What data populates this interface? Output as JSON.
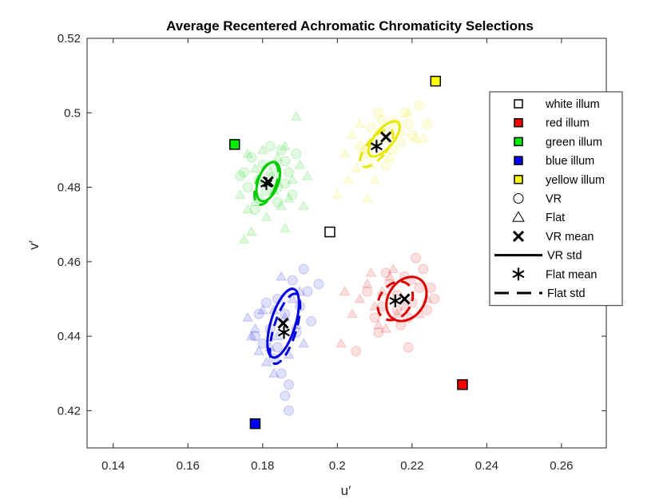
{
  "chart_data": {
    "type": "scatter",
    "title": "Average Recentered Achromatic Chromaticity Selections",
    "xlabel": "u′",
    "ylabel": "v′",
    "xlim": [
      0.133,
      0.272
    ],
    "ylim": [
      0.41,
      0.52
    ],
    "xticks": [
      0.14,
      0.16,
      0.18,
      0.2,
      0.22,
      0.24,
      0.26
    ],
    "xtick_labels": [
      "0.14",
      "0.16",
      "0.18",
      "0.2",
      "0.22",
      "0.24",
      "0.26"
    ],
    "yticks": [
      0.42,
      0.44,
      0.46,
      0.48,
      0.5,
      0.52
    ],
    "ytick_labels": [
      "0.42",
      "0.44",
      "0.46",
      "0.48",
      "0.5",
      "0.52"
    ],
    "grid": false,
    "legend_position": "right",
    "illuminants": [
      {
        "name": "white illum",
        "u": 0.198,
        "v": 0.468,
        "color": "#ffffff"
      },
      {
        "name": "red illum",
        "u": 0.2335,
        "v": 0.427,
        "color": "#ff0000"
      },
      {
        "name": "green illum",
        "u": 0.1725,
        "v": 0.4915,
        "color": "#00ee00"
      },
      {
        "name": "blue illum",
        "u": 0.178,
        "v": 0.4165,
        "color": "#0000ff"
      },
      {
        "name": "yellow illum",
        "u": 0.2263,
        "v": 0.5085,
        "color": "#ffff00"
      }
    ],
    "clusters": [
      {
        "color": "#00cc00",
        "vr_mean": [
          0.1815,
          0.4815
        ],
        "flat_mean": [
          0.181,
          0.481
        ],
        "vr_std": {
          "center": [
            0.1815,
            0.4815
          ],
          "rx": 0.0027,
          "ry": 0.0055,
          "angle": 20
        },
        "flat_std": {
          "center": [
            0.181,
            0.481
          ],
          "rx": 0.0026,
          "ry": 0.006,
          "angle": 20
        },
        "vr_points": [
          [
            0.175,
            0.484
          ],
          [
            0.177,
            0.488
          ],
          [
            0.179,
            0.482
          ],
          [
            0.183,
            0.486
          ],
          [
            0.185,
            0.49
          ],
          [
            0.187,
            0.484
          ],
          [
            0.189,
            0.489
          ],
          [
            0.181,
            0.479
          ],
          [
            0.184,
            0.476
          ],
          [
            0.186,
            0.481
          ],
          [
            0.178,
            0.474
          ],
          [
            0.182,
            0.491
          ],
          [
            0.176,
            0.48
          ],
          [
            0.188,
            0.478
          ],
          [
            0.183,
            0.483
          ],
          [
            0.18,
            0.486
          ],
          [
            0.174,
            0.483
          ],
          [
            0.186,
            0.487
          ],
          [
            0.179,
            0.477
          ],
          [
            0.184,
            0.48
          ]
        ],
        "flat_points": [
          [
            0.176,
            0.489
          ],
          [
            0.178,
            0.485
          ],
          [
            0.174,
            0.478
          ],
          [
            0.176,
            0.474
          ],
          [
            0.179,
            0.482
          ],
          [
            0.182,
            0.484
          ],
          [
            0.184,
            0.488
          ],
          [
            0.186,
            0.491
          ],
          [
            0.188,
            0.482
          ],
          [
            0.19,
            0.486
          ],
          [
            0.177,
            0.468
          ],
          [
            0.181,
            0.472
          ],
          [
            0.185,
            0.475
          ],
          [
            0.189,
            0.499
          ],
          [
            0.191,
            0.475
          ],
          [
            0.183,
            0.479
          ],
          [
            0.187,
            0.477
          ],
          [
            0.175,
            0.466
          ],
          [
            0.192,
            0.483
          ],
          [
            0.18,
            0.49
          ],
          [
            0.178,
            0.476
          ],
          [
            0.186,
            0.469
          ]
        ]
      },
      {
        "color": "#e8e800",
        "vr_mean": [
          0.213,
          0.4935
        ],
        "flat_mean": [
          0.2105,
          0.491
        ],
        "vr_std": {
          "center": [
            0.2125,
            0.493
          ],
          "rx": 0.0025,
          "ry": 0.0058,
          "angle": 40
        },
        "flat_std": {
          "center": [
            0.2105,
            0.4905
          ],
          "rx": 0.0026,
          "ry": 0.0062,
          "angle": 40
        },
        "vr_points": [
          [
            0.212,
            0.498
          ],
          [
            0.214,
            0.495
          ],
          [
            0.216,
            0.497
          ],
          [
            0.21,
            0.492
          ],
          [
            0.218,
            0.5
          ],
          [
            0.222,
            0.502
          ],
          [
            0.215,
            0.49
          ],
          [
            0.208,
            0.489
          ],
          [
            0.22,
            0.494
          ],
          [
            0.213,
            0.486
          ],
          [
            0.217,
            0.492
          ],
          [
            0.209,
            0.496
          ],
          [
            0.206,
            0.491
          ],
          [
            0.219,
            0.497
          ],
          [
            0.211,
            0.5
          ],
          [
            0.224,
            0.497
          ]
        ],
        "flat_points": [
          [
            0.2,
            0.478
          ],
          [
            0.203,
            0.482
          ],
          [
            0.205,
            0.485
          ],
          [
            0.207,
            0.49
          ],
          [
            0.209,
            0.486
          ],
          [
            0.211,
            0.495
          ],
          [
            0.213,
            0.493
          ],
          [
            0.215,
            0.498
          ],
          [
            0.217,
            0.495
          ],
          [
            0.219,
            0.5
          ],
          [
            0.221,
            0.493
          ],
          [
            0.206,
            0.497
          ],
          [
            0.21,
            0.482
          ],
          [
            0.208,
            0.477
          ],
          [
            0.204,
            0.494
          ],
          [
            0.214,
            0.488
          ],
          [
            0.223,
            0.493
          ],
          [
            0.202,
            0.489
          ]
        ]
      },
      {
        "color": "#0000e0",
        "vr_mean": [
          0.1855,
          0.4435
        ],
        "flat_mean": [
          0.1857,
          0.441
        ],
        "vr_std": {
          "center": [
            0.1855,
            0.4435
          ],
          "rx": 0.0033,
          "ry": 0.0096,
          "angle": 17
        },
        "flat_std": {
          "center": [
            0.186,
            0.442
          ],
          "rx": 0.003,
          "ry": 0.0098,
          "angle": 17
        },
        "vr_points": [
          [
            0.184,
            0.45
          ],
          [
            0.186,
            0.446
          ],
          [
            0.188,
            0.455
          ],
          [
            0.19,
            0.448
          ],
          [
            0.192,
            0.452
          ],
          [
            0.182,
            0.442
          ],
          [
            0.18,
            0.438
          ],
          [
            0.183,
            0.434
          ],
          [
            0.185,
            0.43
          ],
          [
            0.187,
            0.427
          ],
          [
            0.186,
            0.424
          ],
          [
            0.187,
            0.42
          ],
          [
            0.179,
            0.446
          ],
          [
            0.191,
            0.458
          ],
          [
            0.193,
            0.444
          ],
          [
            0.181,
            0.449
          ],
          [
            0.189,
            0.441
          ],
          [
            0.184,
            0.437
          ],
          [
            0.195,
            0.454
          ],
          [
            0.178,
            0.44
          ]
        ],
        "flat_points": [
          [
            0.176,
            0.445
          ],
          [
            0.178,
            0.442
          ],
          [
            0.18,
            0.447
          ],
          [
            0.182,
            0.437
          ],
          [
            0.184,
            0.44
          ],
          [
            0.186,
            0.445
          ],
          [
            0.188,
            0.45
          ],
          [
            0.19,
            0.452
          ],
          [
            0.181,
            0.433
          ],
          [
            0.183,
            0.43
          ],
          [
            0.179,
            0.436
          ],
          [
            0.185,
            0.456
          ],
          [
            0.187,
            0.435
          ],
          [
            0.189,
            0.443
          ],
          [
            0.177,
            0.44
          ],
          [
            0.191,
            0.438
          ],
          [
            0.183,
            0.447
          ]
        ]
      },
      {
        "color": "#dd0000",
        "vr_mean": [
          0.218,
          0.45
        ],
        "flat_mean": [
          0.2155,
          0.4495
        ],
        "vr_std": {
          "center": [
            0.2185,
            0.45
          ],
          "rx": 0.0048,
          "ry": 0.0064,
          "angle": 35
        },
        "flat_std": {
          "center": [
            0.2155,
            0.4495
          ],
          "rx": 0.0042,
          "ry": 0.0056,
          "angle": 35
        },
        "vr_points": [
          [
            0.214,
            0.454
          ],
          [
            0.216,
            0.451
          ],
          [
            0.218,
            0.456
          ],
          [
            0.22,
            0.449
          ],
          [
            0.222,
            0.453
          ],
          [
            0.224,
            0.447
          ],
          [
            0.212,
            0.448
          ],
          [
            0.21,
            0.445
          ],
          [
            0.219,
            0.445
          ],
          [
            0.221,
            0.461
          ],
          [
            0.225,
            0.453
          ],
          [
            0.217,
            0.443
          ],
          [
            0.213,
            0.457
          ],
          [
            0.208,
            0.452
          ],
          [
            0.223,
            0.458
          ],
          [
            0.226,
            0.45
          ],
          [
            0.211,
            0.441
          ],
          [
            0.219,
            0.437
          ],
          [
            0.205,
            0.436
          ],
          [
            0.216,
            0.447
          ]
        ],
        "flat_points": [
          [
            0.204,
            0.446
          ],
          [
            0.206,
            0.45
          ],
          [
            0.208,
            0.454
          ],
          [
            0.21,
            0.448
          ],
          [
            0.212,
            0.452
          ],
          [
            0.214,
            0.456
          ],
          [
            0.216,
            0.446
          ],
          [
            0.218,
            0.448
          ],
          [
            0.22,
            0.455
          ],
          [
            0.222,
            0.446
          ],
          [
            0.202,
            0.452
          ],
          [
            0.201,
            0.438
          ],
          [
            0.211,
            0.443
          ],
          [
            0.215,
            0.458
          ],
          [
            0.224,
            0.45
          ],
          [
            0.209,
            0.457
          ],
          [
            0.213,
            0.442
          ]
        ]
      }
    ],
    "legend": [
      {
        "label": "white illum",
        "marker": "square",
        "color": "#ffffff"
      },
      {
        "label": "red illum",
        "marker": "square",
        "color": "#ff0000"
      },
      {
        "label": "green illum",
        "marker": "square",
        "color": "#00ee00"
      },
      {
        "label": "blue illum",
        "marker": "square",
        "color": "#0000ff"
      },
      {
        "label": "yellow illum",
        "marker": "square",
        "color": "#ffff00"
      },
      {
        "label": "VR",
        "marker": "circle",
        "color": "#ffffff"
      },
      {
        "label": "Flat",
        "marker": "triangle",
        "color": "#ffffff"
      },
      {
        "label": "VR mean",
        "marker": "x",
        "color": "#000000"
      },
      {
        "label": "VR std",
        "marker": "solid-line",
        "color": "#000000"
      },
      {
        "label": "Flat mean",
        "marker": "asterisk",
        "color": "#000000"
      },
      {
        "label": "Flat std",
        "marker": "dashed-line",
        "color": "#000000"
      }
    ]
  }
}
